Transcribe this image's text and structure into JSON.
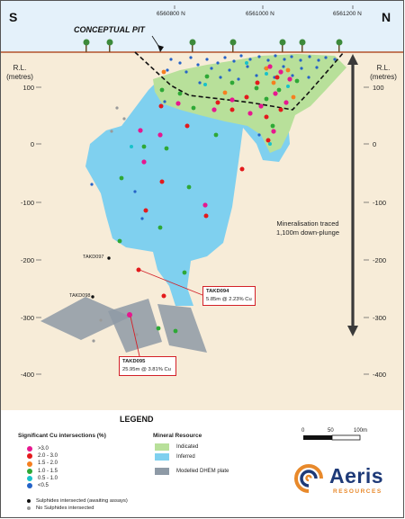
{
  "header": {
    "left_dir": "S",
    "right_dir": "N"
  },
  "northings": [
    "6560800 N",
    "6561000 N",
    "6561200 N"
  ],
  "rl_label_line1": "R.L.",
  "rl_label_line2": "(metres)",
  "rl_ticks": [
    "100",
    "0",
    "-100",
    "-200",
    "-300",
    "-400"
  ],
  "callouts": {
    "pit": "CONCEPTUAL PIT",
    "mineral_line1": "Mineralisation traced",
    "mineral_line2": "1,100m down-plunge",
    "hole_1": "TAKD097",
    "hole_2": "TAKD098",
    "intercept_a_id": "TAKD094",
    "intercept_a_value": "5.85m @ 2.23% Cu",
    "intercept_b_id": "TAKD095",
    "intercept_b_value": "25.95m @ 3.81% Cu"
  },
  "legend": {
    "title": "LEGEND",
    "cu_heading": "Significant Cu intersections (%)",
    "cu_items": [
      {
        "label": ">3.0",
        "color": "#e6178f"
      },
      {
        "label": "2.0 - 3.0",
        "color": "#e31a1c"
      },
      {
        "label": "1.5 - 2.0",
        "color": "#f57f20"
      },
      {
        "label": "1.0 - 1.5",
        "color": "#2ea836"
      },
      {
        "label": "0.5 - 1.0",
        "color": "#18c2c9"
      },
      {
        "label": "<0.5",
        "color": "#2563c7"
      }
    ],
    "black_item": "Sulphides intersected (awaiting assays)",
    "grey_item": "No Sulphides intersected",
    "resource_heading": "Mineral Resource",
    "indicated": "Indicated",
    "inferred": "Inferred",
    "plate": "Modelled DHEM plate",
    "scale_0": "0",
    "scale_50": "50",
    "scale_100": "100m"
  },
  "logo": {
    "name": "Aeris",
    "sub": "RESOURCES"
  },
  "colors": {
    "ground": "#f7ecd8",
    "sky": "#e4f1fa",
    "indicated": "#b8e09a",
    "inferred": "#7fd0ef",
    "plate": "#8e9aa6",
    "surface": "#b4532a",
    "logo_blue": "#1e3a78",
    "logo_orange": "#e8892b"
  }
}
